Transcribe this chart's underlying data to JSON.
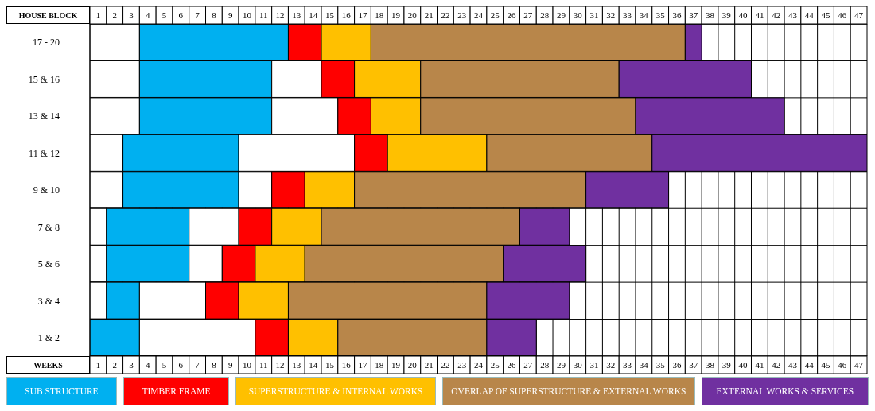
{
  "chart_data": {
    "type": "bar",
    "orientation": "horizontal",
    "stacked": true,
    "xlabel": "WEEKS",
    "ylabel": "HOUSE BLOCK",
    "categories": [
      "17 - 20",
      "15 & 16",
      "13 & 14",
      "11 & 12",
      "9 & 10",
      "7 & 8",
      "5 & 6",
      "3 & 4",
      "1 & 2"
    ],
    "series": [
      {
        "color": "#ffffff",
        "values": [
          3,
          3,
          3,
          2,
          2,
          1,
          1,
          1,
          0
        ]
      },
      {
        "name": "SUB STRUCTURE",
        "color": "#00b0f0",
        "values": [
          9,
          8,
          8,
          7,
          7,
          5,
          5,
          2,
          3
        ]
      },
      {
        "color": "#ffffff",
        "values": [
          0,
          3,
          4,
          7,
          2,
          3,
          2,
          4,
          7
        ]
      },
      {
        "name": "TIMBER FRAME",
        "color": "#ff0000",
        "values": [
          2,
          2,
          2,
          2,
          2,
          2,
          2,
          2,
          2
        ]
      },
      {
        "name": "SUPERSTRUCTURE  & INTERNAL WORKS",
        "color": "#ffc000",
        "values": [
          3,
          4,
          3,
          6,
          3,
          3,
          3,
          3,
          3
        ]
      },
      {
        "name": "OVERLAP OF SUPERSTRUCTURE  & EXTERNAL WORKS",
        "color": "#b8864a",
        "values": [
          19,
          12,
          13,
          10,
          14,
          12,
          12,
          12,
          9
        ]
      },
      {
        "name": "EXTERNAL WORKS & SERVICES",
        "color": "#7030a0",
        "values": [
          1,
          8,
          9,
          13,
          5,
          3,
          5,
          5,
          3
        ]
      }
    ],
    "xlim": [
      0,
      47
    ],
    "xticks": [
      {
        "value": 0.5,
        "label": "1"
      },
      {
        "value": 1.5,
        "label": "2"
      },
      {
        "value": 2.5,
        "label": "3"
      },
      {
        "value": 3.5,
        "label": "4"
      },
      {
        "value": 4.5,
        "label": "5"
      },
      {
        "value": 5.5,
        "label": "6"
      },
      {
        "value": 6.5,
        "label": "7"
      },
      {
        "value": 7.5,
        "label": "8"
      },
      {
        "value": 8.5,
        "label": "9"
      },
      {
        "value": 9.5,
        "label": "10"
      },
      {
        "value": 10.5,
        "label": "11"
      },
      {
        "value": 11.5,
        "label": "12"
      },
      {
        "value": 12.5,
        "label": "13"
      },
      {
        "value": 13.5,
        "label": "14"
      },
      {
        "value": 14.5,
        "label": "15"
      },
      {
        "value": 15.5,
        "label": "16"
      },
      {
        "value": 16.5,
        "label": "17"
      },
      {
        "value": 17.5,
        "label": "18"
      },
      {
        "value": 18.5,
        "label": "19"
      },
      {
        "value": 19.5,
        "label": "20"
      },
      {
        "value": 20.5,
        "label": "21"
      },
      {
        "value": 21.5,
        "label": "22"
      },
      {
        "value": 22.5,
        "label": "23"
      },
      {
        "value": 23.5,
        "label": "24"
      },
      {
        "value": 24.5,
        "label": "25"
      },
      {
        "value": 25.5,
        "label": "26"
      },
      {
        "value": 26.5,
        "label": "27"
      },
      {
        "value": 27.5,
        "label": "28"
      },
      {
        "value": 28.5,
        "label": "29"
      },
      {
        "value": 29.5,
        "label": "30"
      },
      {
        "value": 30.5,
        "label": "31"
      },
      {
        "value": 31.5,
        "label": "32"
      },
      {
        "value": 32.5,
        "label": "33"
      },
      {
        "value": 33.5,
        "label": "34"
      },
      {
        "value": 34.5,
        "label": "35"
      },
      {
        "value": 35.5,
        "label": "36"
      },
      {
        "value": 36.5,
        "label": "37"
      },
      {
        "value": 37.5,
        "label": "38"
      },
      {
        "value": 38.5,
        "label": "39"
      },
      {
        "value": 39.5,
        "label": "40"
      },
      {
        "value": 40.5,
        "label": "41"
      },
      {
        "value": 41.5,
        "label": "42"
      },
      {
        "value": 42.5,
        "label": "43"
      },
      {
        "value": 43.5,
        "label": "44"
      },
      {
        "value": 44.5,
        "label": "45"
      },
      {
        "value": 45.5,
        "label": "46"
      },
      {
        "value": 46.5,
        "label": "47"
      }
    ],
    "x2lim": [
      0,
      47
    ],
    "x2ticks": [
      {
        "value": 0.5,
        "label": "1"
      },
      {
        "value": 1.5,
        "label": "2"
      },
      {
        "value": 2.5,
        "label": "3"
      },
      {
        "value": 3.5,
        "label": "4"
      },
      {
        "value": 4.5,
        "label": "5"
      },
      {
        "value": 5.5,
        "label": "6"
      },
      {
        "value": 6.5,
        "label": "7"
      },
      {
        "value": 7.5,
        "label": "8"
      },
      {
        "value": 8.5,
        "label": "9"
      },
      {
        "value": 9.5,
        "label": "10"
      },
      {
        "value": 10.5,
        "label": "11"
      },
      {
        "value": 11.5,
        "label": "12"
      },
      {
        "value": 12.5,
        "label": "13"
      },
      {
        "value": 13.5,
        "label": "14"
      },
      {
        "value": 14.5,
        "label": "15"
      },
      {
        "value": 15.5,
        "label": "16"
      },
      {
        "value": 16.5,
        "label": "17"
      },
      {
        "value": 17.5,
        "label": "18"
      },
      {
        "value": 18.5,
        "label": "19"
      },
      {
        "value": 19.5,
        "label": "20"
      },
      {
        "value": 20.5,
        "label": "21"
      },
      {
        "value": 21.5,
        "label": "22"
      },
      {
        "value": 22.5,
        "label": "23"
      },
      {
        "value": 23.5,
        "label": "24"
      },
      {
        "value": 24.5,
        "label": "25"
      },
      {
        "value": 25.5,
        "label": "26"
      },
      {
        "value": 26.5,
        "label": "27"
      },
      {
        "value": 27.5,
        "label": "28"
      },
      {
        "value": 28.5,
        "label": "29"
      },
      {
        "value": 29.5,
        "label": "30"
      },
      {
        "value": 30.5,
        "label": "31"
      },
      {
        "value": 31.5,
        "label": "32"
      },
      {
        "value": 32.5,
        "label": "33"
      },
      {
        "value": 33.5,
        "label": "34"
      },
      {
        "value": 34.5,
        "label": "35"
      },
      {
        "value": 35.5,
        "label": "36"
      },
      {
        "value": 36.5,
        "label": "37"
      },
      {
        "value": 37.5,
        "label": "38"
      },
      {
        "value": 38.5,
        "label": "39"
      },
      {
        "value": 39.5,
        "label": "40"
      },
      {
        "value": 40.5,
        "label": "41"
      },
      {
        "value": 41.5,
        "label": "42"
      },
      {
        "value": 42.5,
        "label": "43"
      },
      {
        "value": 43.5,
        "label": "44"
      },
      {
        "value": 44.5,
        "label": "45"
      },
      {
        "value": 45.5,
        "label": "46"
      },
      {
        "value": 46.5,
        "label": "47"
      }
    ],
    "grid": true,
    "legend": "bottom"
  }
}
